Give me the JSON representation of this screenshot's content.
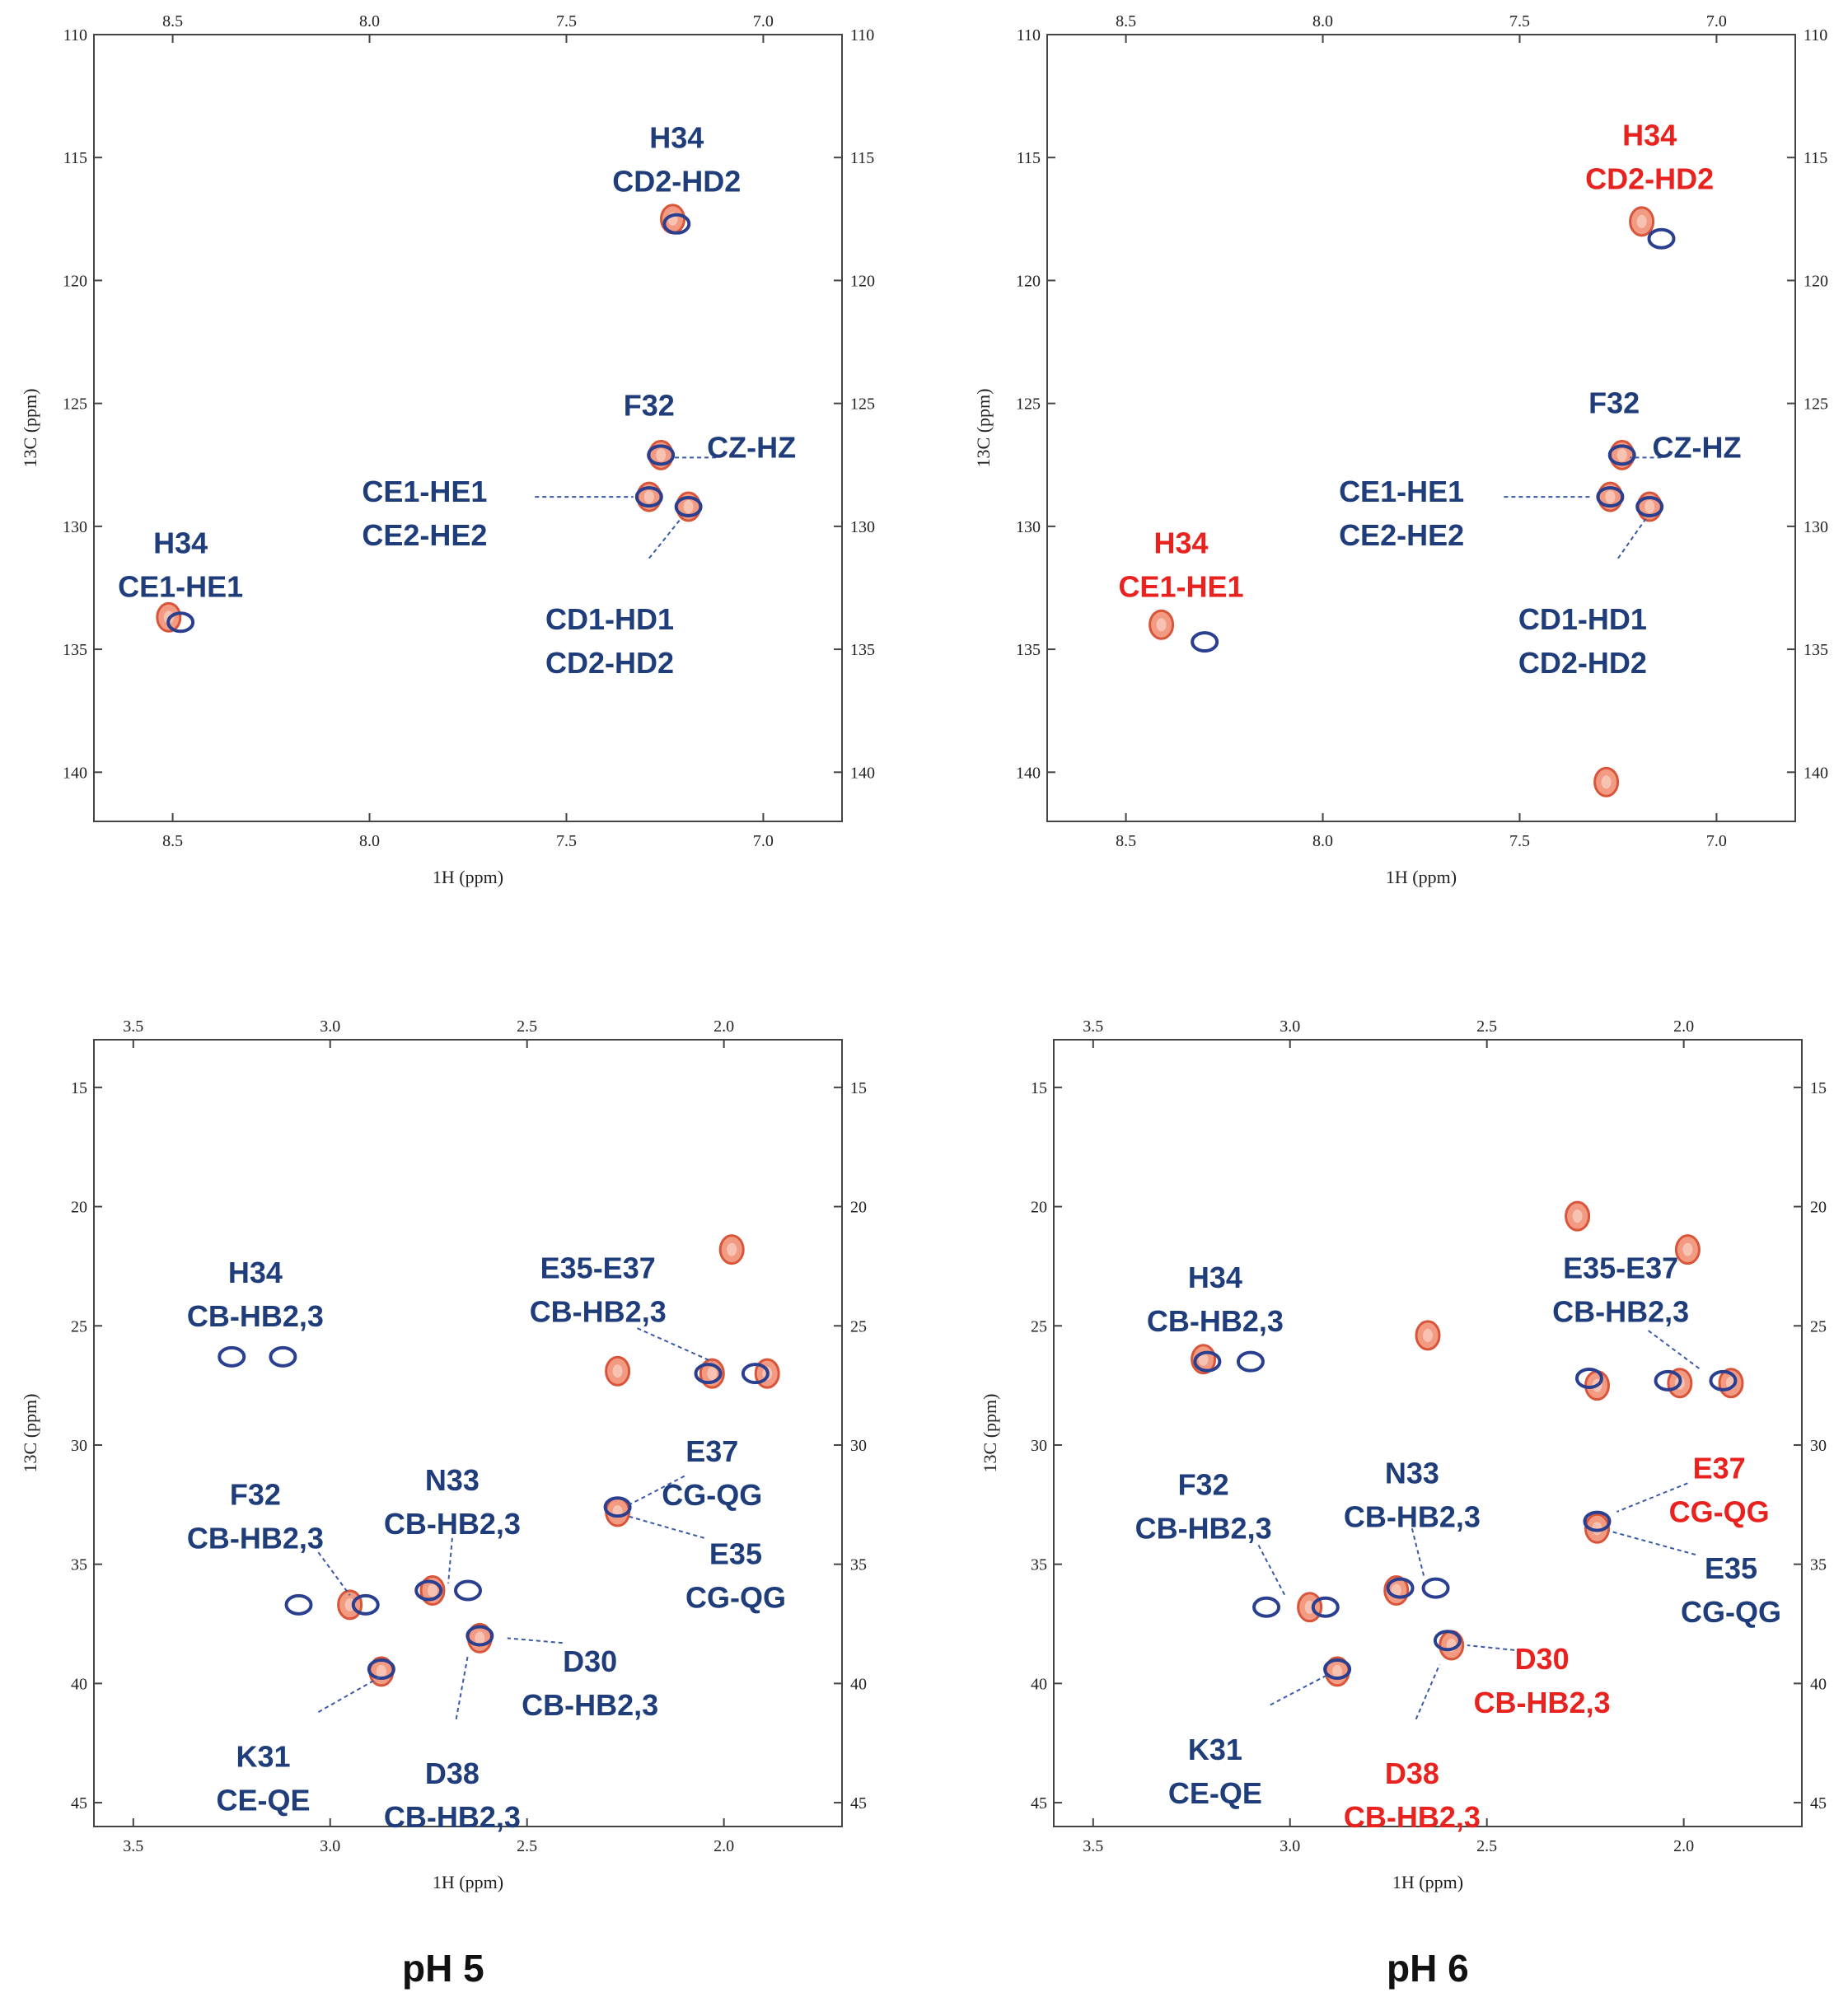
{
  "colors": {
    "blue": "#1f3d7a",
    "red": "#e8231f",
    "peak_fill": "#f08a6c",
    "peak_stroke": "#d9553a",
    "contour_blue": "#2a3f8f",
    "axis": "#444444"
  },
  "captions": [
    "pH 5",
    "pH 6"
  ],
  "chart_data": [
    {
      "type": "scatter",
      "xlabel": "1H (ppm)",
      "ylabel": "13C (ppm)",
      "xlim": [
        8.7,
        6.8
      ],
      "ylim": [
        110,
        142
      ],
      "xticks": [
        "8.5",
        "8.0",
        "7.5",
        "7.0"
      ],
      "xtick_values": [
        8.5,
        8.0,
        7.5,
        7.0
      ],
      "yticks": [
        "110",
        "115",
        "120",
        "125",
        "130",
        "135",
        "140"
      ],
      "ytick_values": [
        110,
        115,
        120,
        125,
        130,
        135,
        140
      ],
      "series": [
        {
          "name": "red",
          "points": [
            [
              8.51,
              133.7
            ],
            [
              7.23,
              117.5
            ],
            [
              7.26,
              127.1
            ],
            [
              7.29,
              128.8
            ],
            [
              7.19,
              129.2
            ]
          ]
        },
        {
          "name": "blue",
          "points": [
            [
              8.48,
              133.9
            ],
            [
              7.22,
              117.7
            ],
            [
              7.26,
              127.1
            ],
            [
              7.29,
              128.8
            ],
            [
              7.19,
              129.2
            ]
          ]
        }
      ],
      "annotations": [
        {
          "lines": [
            "H34",
            "CE1-HE1"
          ],
          "x": 8.48,
          "y": 131.1,
          "color": "blue"
        },
        {
          "lines": [
            "H34",
            "CD2-HD2"
          ],
          "x": 7.22,
          "y": 114.6,
          "color": "blue"
        },
        {
          "lines": [
            "F32"
          ],
          "x": 7.29,
          "y": 125.5,
          "color": "blue"
        },
        {
          "lines": [
            "CZ-HZ"
          ],
          "x": 7.03,
          "y": 127.2,
          "color": "blue",
          "leader": [
            7.12,
            127.2,
            7.23,
            127.2
          ]
        },
        {
          "lines": [
            "CE1-HE1",
            "CE2-HE2"
          ],
          "x": 7.86,
          "y": 129.0,
          "color": "blue",
          "leader": [
            7.58,
            128.8,
            7.33,
            128.8
          ]
        },
        {
          "lines": [
            "CD1-HD1",
            "CD2-HD2"
          ],
          "x": 7.39,
          "y": 134.2,
          "color": "blue",
          "leader": [
            7.29,
            131.3,
            7.21,
            129.7
          ]
        }
      ]
    },
    {
      "type": "scatter",
      "xlabel": "1H (ppm)",
      "ylabel": "13C (ppm)",
      "xlim": [
        8.7,
        6.8
      ],
      "ylim": [
        110,
        142
      ],
      "xticks": [
        "8.5",
        "8.0",
        "7.5",
        "7.0"
      ],
      "xtick_values": [
        8.5,
        8.0,
        7.5,
        7.0
      ],
      "yticks": [
        "110",
        "115",
        "120",
        "125",
        "130",
        "135",
        "140"
      ],
      "ytick_values": [
        110,
        115,
        120,
        125,
        130,
        135,
        140
      ],
      "series": [
        {
          "name": "red",
          "points": [
            [
              8.41,
              134.0
            ],
            [
              7.19,
              117.6
            ],
            [
              7.24,
              127.1
            ],
            [
              7.27,
              128.8
            ],
            [
              7.17,
              129.2
            ],
            [
              7.28,
              140.4
            ]
          ]
        },
        {
          "name": "blue",
          "points": [
            [
              8.3,
              134.7
            ],
            [
              7.14,
              118.3
            ],
            [
              7.24,
              127.1
            ],
            [
              7.27,
              128.8
            ],
            [
              7.17,
              129.2
            ]
          ]
        }
      ],
      "annotations": [
        {
          "lines": [
            "H34",
            "CE1-HE1"
          ],
          "x": 8.36,
          "y": 131.1,
          "color": "red"
        },
        {
          "lines": [
            "H34",
            "CD2-HD2"
          ],
          "x": 7.17,
          "y": 114.5,
          "color": "red"
        },
        {
          "lines": [
            "F32"
          ],
          "x": 7.26,
          "y": 125.4,
          "color": "blue"
        },
        {
          "lines": [
            "CZ-HZ"
          ],
          "x": 7.05,
          "y": 127.2,
          "color": "blue",
          "leader": [
            7.14,
            127.2,
            7.22,
            127.2
          ]
        },
        {
          "lines": [
            "CE1-HE1",
            "CE2-HE2"
          ],
          "x": 7.8,
          "y": 129.0,
          "color": "blue",
          "leader": [
            7.54,
            128.8,
            7.32,
            128.8
          ]
        },
        {
          "lines": [
            "CD1-HD1",
            "CD2-HD2"
          ],
          "x": 7.34,
          "y": 134.2,
          "color": "blue",
          "leader": [
            7.25,
            131.3,
            7.18,
            129.7
          ]
        }
      ]
    },
    {
      "type": "scatter",
      "xlabel": "1H (ppm)",
      "ylabel": "13C (ppm)",
      "xlim": [
        3.6,
        1.7
      ],
      "ylim": [
        13,
        46
      ],
      "xticks": [
        "3.5",
        "3.0",
        "2.5",
        "2.0"
      ],
      "xtick_values": [
        3.5,
        3.0,
        2.5,
        2.0
      ],
      "yticks": [
        "15",
        "20",
        "25",
        "30",
        "35",
        "40",
        "45"
      ],
      "ytick_values": [
        15,
        20,
        25,
        30,
        35,
        40,
        45
      ],
      "series": [
        {
          "name": "red",
          "points": [
            [
              1.98,
              21.8
            ],
            [
              2.03,
              27.0
            ],
            [
              1.89,
              27.0
            ],
            [
              2.27,
              32.8
            ],
            [
              2.62,
              38.1
            ],
            [
              2.87,
              39.5
            ],
            [
              2.74,
              36.1
            ],
            [
              2.95,
              36.7
            ],
            [
              2.27,
              26.9
            ]
          ]
        },
        {
          "name": "blue",
          "points": [
            [
              3.25,
              26.3
            ],
            [
              3.12,
              26.3
            ],
            [
              2.04,
              27.0
            ],
            [
              1.92,
              27.0
            ],
            [
              2.27,
              32.6
            ],
            [
              2.62,
              38.0
            ],
            [
              2.87,
              39.4
            ],
            [
              2.75,
              36.1
            ],
            [
              2.65,
              36.1
            ],
            [
              2.91,
              36.7
            ],
            [
              3.08,
              36.7
            ]
          ]
        }
      ],
      "annotations": [
        {
          "lines": [
            "H34",
            "CB-HB2,3"
          ],
          "x": 3.19,
          "y": 23.2,
          "color": "blue"
        },
        {
          "lines": [
            "E35-E37",
            "CB-HB2,3"
          ],
          "x": 2.32,
          "y": 23.0,
          "color": "blue",
          "leader": [
            2.22,
            25.1,
            2.03,
            26.5
          ]
        },
        {
          "lines": [
            "E37",
            "CG-QG"
          ],
          "x": 2.03,
          "y": 30.7,
          "color": "blue",
          "leader": [
            2.1,
            31.3,
            2.24,
            32.5
          ]
        },
        {
          "lines": [
            "E35",
            "CG-QG"
          ],
          "x": 1.97,
          "y": 35.0,
          "color": "blue",
          "leader": [
            2.05,
            33.9,
            2.24,
            33.0
          ]
        },
        {
          "lines": [
            "F32",
            "CB-HB2,3"
          ],
          "x": 3.19,
          "y": 32.5,
          "color": "blue",
          "leader": [
            3.03,
            34.5,
            2.95,
            36.3
          ]
        },
        {
          "lines": [
            "N33",
            "CB-HB2,3"
          ],
          "x": 2.69,
          "y": 31.9,
          "color": "blue",
          "leader": [
            2.69,
            33.9,
            2.7,
            35.8
          ]
        },
        {
          "lines": [
            "D30",
            "CB-HB2,3"
          ],
          "x": 2.34,
          "y": 39.5,
          "color": "blue",
          "leader": [
            2.41,
            38.3,
            2.55,
            38.1
          ]
        },
        {
          "lines": [
            "K31",
            "CE-QE"
          ],
          "x": 3.17,
          "y": 43.5,
          "color": "blue",
          "leader": [
            3.03,
            41.2,
            2.87,
            39.7
          ]
        },
        {
          "lines": [
            "D38",
            "CB-HB2,3"
          ],
          "x": 2.69,
          "y": 44.2,
          "color": "blue",
          "leader": [
            2.68,
            41.5,
            2.65,
            38.8
          ]
        }
      ]
    },
    {
      "type": "scatter",
      "xlabel": "1H (ppm)",
      "ylabel": "13C (ppm)",
      "xlim": [
        3.6,
        1.7
      ],
      "ylim": [
        13,
        46
      ],
      "xticks": [
        "3.5",
        "3.0",
        "2.5",
        "2.0"
      ],
      "xtick_values": [
        3.5,
        3.0,
        2.5,
        2.0
      ],
      "yticks": [
        "15",
        "20",
        "25",
        "30",
        "35",
        "40",
        "45"
      ],
      "ytick_values": [
        15,
        20,
        25,
        30,
        35,
        40,
        45
      ],
      "series": [
        {
          "name": "red",
          "points": [
            [
              1.99,
              21.8
            ],
            [
              2.01,
              27.4
            ],
            [
              1.88,
              27.4
            ],
            [
              2.22,
              27.5
            ],
            [
              2.22,
              33.5
            ],
            [
              2.59,
              38.4
            ],
            [
              2.88,
              39.5
            ],
            [
              2.73,
              36.1
            ],
            [
              2.95,
              36.8
            ],
            [
              3.22,
              26.4
            ],
            [
              2.27,
              20.4
            ],
            [
              2.65,
              25.4
            ]
          ]
        },
        {
          "name": "blue",
          "points": [
            [
              3.21,
              26.5
            ],
            [
              3.1,
              26.5
            ],
            [
              2.04,
              27.3
            ],
            [
              1.9,
              27.3
            ],
            [
              2.24,
              27.2
            ],
            [
              2.22,
              33.2
            ],
            [
              2.6,
              38.2
            ],
            [
              2.88,
              39.4
            ],
            [
              2.72,
              36.0
            ],
            [
              2.63,
              36.0
            ],
            [
              2.91,
              36.8
            ],
            [
              3.06,
              36.8
            ]
          ]
        }
      ],
      "annotations": [
        {
          "lines": [
            "H34",
            "CB-HB2,3"
          ],
          "x": 3.19,
          "y": 23.4,
          "color": "blue"
        },
        {
          "lines": [
            "E35-E37",
            "CB-HB2,3"
          ],
          "x": 2.16,
          "y": 23.0,
          "color": "blue",
          "leader": [
            2.09,
            25.2,
            1.96,
            26.8
          ]
        },
        {
          "lines": [
            "E37",
            "CG-QG"
          ],
          "x": 1.91,
          "y": 31.4,
          "color": "red",
          "leader": [
            1.99,
            31.6,
            2.17,
            32.8
          ]
        },
        {
          "lines": [
            "E35",
            "CG-QG"
          ],
          "x": 1.88,
          "y": 35.6,
          "color": "blue",
          "leader": [
            1.97,
            34.6,
            2.19,
            33.6
          ]
        },
        {
          "lines": [
            "F32",
            "CB-HB2,3"
          ],
          "x": 3.22,
          "y": 32.1,
          "color": "blue",
          "leader": [
            3.08,
            34.2,
            3.01,
            36.4
          ]
        },
        {
          "lines": [
            "N33",
            "CB-HB2,3"
          ],
          "x": 2.69,
          "y": 31.6,
          "color": "blue",
          "leader": [
            2.69,
            33.5,
            2.66,
            35.5
          ]
        },
        {
          "lines": [
            "D30",
            "CB-HB2,3"
          ],
          "x": 2.36,
          "y": 39.4,
          "color": "red",
          "leader": [
            2.43,
            38.6,
            2.55,
            38.4
          ]
        },
        {
          "lines": [
            "K31",
            "CE-QE"
          ],
          "x": 3.19,
          "y": 43.2,
          "color": "blue",
          "leader": [
            3.05,
            40.9,
            2.9,
            39.6
          ]
        },
        {
          "lines": [
            "D38",
            "CB-HB2,3"
          ],
          "x": 2.69,
          "y": 44.2,
          "color": "red",
          "leader": [
            2.68,
            41.5,
            2.62,
            39.2
          ]
        }
      ]
    }
  ]
}
